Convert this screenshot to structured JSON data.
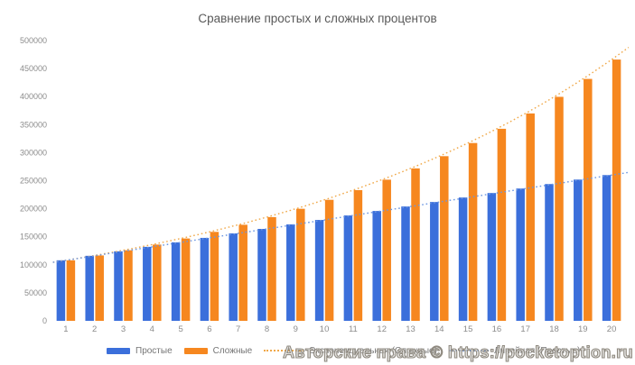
{
  "watermark": {
    "text": "Авторские права © https://pocketoption.ru"
  },
  "chart_data": {
    "type": "bar",
    "title": "Сравнение простых и сложных процентов",
    "xlabel": "",
    "ylabel": "",
    "ylim": [
      0,
      500000
    ],
    "ytick_step": 50000,
    "grid": false,
    "legend_position": "bottom",
    "categories": [
      1,
      2,
      3,
      4,
      5,
      6,
      7,
      8,
      9,
      10,
      11,
      12,
      13,
      14,
      15,
      16,
      17,
      18,
      19,
      20
    ],
    "series": [
      {
        "name": "Простые",
        "color": "#3b6fdb",
        "values": [
          108000,
          116000,
          124000,
          132000,
          140000,
          148000,
          156000,
          164000,
          172000,
          180000,
          188000,
          196000,
          204000,
          212000,
          220000,
          228000,
          236000,
          244000,
          252000,
          260000
        ]
      },
      {
        "name": "Сложные",
        "color": "#f6871f",
        "values": [
          108000,
          116640,
          125971,
          136049,
          146933,
          158687,
          171382,
          185093,
          199900,
          215892,
          233164,
          251817,
          271962,
          293719,
          317217,
          342594,
          370002,
          399602,
          431570,
          466096
        ]
      }
    ],
    "trendlines": [
      {
        "name": "Экспоненциальная (Сложные)",
        "series_index": 1,
        "kind": "exponential",
        "style": "dotted",
        "color": "#f0a848"
      },
      {
        "name": "Линейная (Простые)",
        "series_index": 0,
        "kind": "linear",
        "style": "dotted",
        "color": "#6b96e2"
      }
    ]
  }
}
